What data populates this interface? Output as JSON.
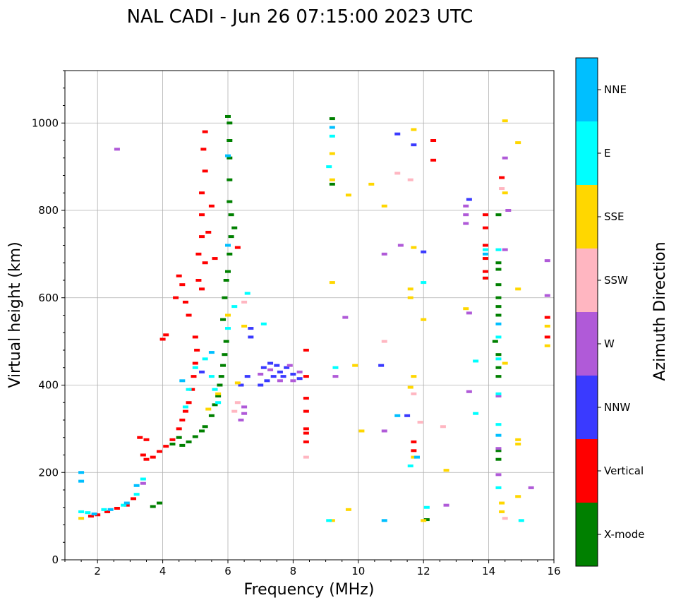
{
  "chart_data": {
    "type": "scatter",
    "title": "NAL CADI - Jun 26 07:15:00 2023 UTC",
    "xlabel": "Frequency (MHz)",
    "ylabel": "Virtual height (km)",
    "xlim": [
      1,
      16
    ],
    "ylim": [
      0,
      1120
    ],
    "xticks": [
      2,
      4,
      6,
      8,
      10,
      12,
      14,
      16
    ],
    "yticks": [
      0,
      200,
      400,
      600,
      800,
      1000
    ],
    "grid": true,
    "colorbar": {
      "title": "Azimuth Direction",
      "categories": [
        {
          "name": "X-mode",
          "color": "#008000"
        },
        {
          "name": "Vertical",
          "color": "#ff0000"
        },
        {
          "name": "NNW",
          "color": "#3a3aff"
        },
        {
          "name": "W",
          "color": "#b05ad8"
        },
        {
          "name": "SSW",
          "color": "#ffb6c1"
        },
        {
          "name": "SSE",
          "color": "#ffd700"
        },
        {
          "name": "E",
          "color": "#00ffff"
        },
        {
          "name": "NNE",
          "color": "#00bfff"
        }
      ]
    },
    "series": [
      {
        "name": "X-mode",
        "points": [
          [
            3.7,
            122
          ],
          [
            3.9,
            130
          ],
          [
            4.6,
            262
          ],
          [
            4.8,
            270
          ],
          [
            5.0,
            282
          ],
          [
            5.2,
            295
          ],
          [
            5.3,
            305
          ],
          [
            5.5,
            330
          ],
          [
            5.6,
            355
          ],
          [
            5.7,
            375
          ],
          [
            5.75,
            400
          ],
          [
            5.8,
            420
          ],
          [
            5.85,
            445
          ],
          [
            5.9,
            470
          ],
          [
            5.95,
            500
          ],
          [
            5.85,
            550
          ],
          [
            5.9,
            600
          ],
          [
            5.95,
            640
          ],
          [
            6.0,
            660
          ],
          [
            6.05,
            700
          ],
          [
            6.1,
            740
          ],
          [
            6.2,
            760
          ],
          [
            6.1,
            790
          ],
          [
            6.05,
            820
          ],
          [
            6.05,
            870
          ],
          [
            6.05,
            920
          ],
          [
            6.05,
            960
          ],
          [
            6.05,
            1000
          ],
          [
            6.0,
            1015
          ],
          [
            9.2,
            1010
          ],
          [
            9.2,
            860
          ],
          [
            12.1,
            92
          ],
          [
            14.3,
            230
          ],
          [
            14.3,
            250
          ],
          [
            14.3,
            420
          ],
          [
            14.3,
            440
          ],
          [
            14.3,
            470
          ],
          [
            14.3,
            560
          ],
          [
            14.3,
            580
          ],
          [
            14.3,
            600
          ],
          [
            14.3,
            630
          ],
          [
            14.3,
            665
          ],
          [
            14.3,
            680
          ],
          [
            14.3,
            790
          ],
          [
            13.9,
            645
          ],
          [
            14.2,
            500
          ],
          [
            4.3,
            265
          ],
          [
            4.5,
            280
          ]
        ]
      },
      {
        "name": "Vertical",
        "points": [
          [
            1.8,
            100
          ],
          [
            2.0,
            103
          ],
          [
            2.3,
            110
          ],
          [
            2.6,
            118
          ],
          [
            2.9,
            125
          ],
          [
            3.1,
            140
          ],
          [
            3.4,
            240
          ],
          [
            3.5,
            230
          ],
          [
            3.7,
            235
          ],
          [
            3.9,
            248
          ],
          [
            4.1,
            260
          ],
          [
            4.3,
            275
          ],
          [
            4.5,
            300
          ],
          [
            4.6,
            320
          ],
          [
            4.7,
            340
          ],
          [
            4.8,
            360
          ],
          [
            4.9,
            390
          ],
          [
            4.95,
            420
          ],
          [
            5.0,
            450
          ],
          [
            5.05,
            480
          ],
          [
            5.0,
            510
          ],
          [
            4.8,
            560
          ],
          [
            4.7,
            590
          ],
          [
            4.6,
            630
          ],
          [
            5.1,
            640
          ],
          [
            5.2,
            620
          ],
          [
            5.3,
            680
          ],
          [
            5.1,
            700
          ],
          [
            5.2,
            740
          ],
          [
            5.2,
            790
          ],
          [
            5.2,
            840
          ],
          [
            5.3,
            890
          ],
          [
            5.25,
            940
          ],
          [
            5.3,
            980
          ],
          [
            4.0,
            505
          ],
          [
            4.1,
            515
          ],
          [
            3.3,
            280
          ],
          [
            3.5,
            275
          ],
          [
            4.4,
            600
          ],
          [
            4.5,
            650
          ],
          [
            5.4,
            750
          ],
          [
            5.5,
            810
          ],
          [
            5.6,
            690
          ],
          [
            6.3,
            715
          ],
          [
            8.4,
            270
          ],
          [
            8.4,
            290
          ],
          [
            8.4,
            300
          ],
          [
            8.4,
            340
          ],
          [
            8.4,
            370
          ],
          [
            8.4,
            420
          ],
          [
            8.4,
            480
          ],
          [
            11.7,
            270
          ],
          [
            11.7,
            250
          ],
          [
            12.3,
            915
          ],
          [
            12.3,
            960
          ],
          [
            13.9,
            645
          ],
          [
            13.9,
            660
          ],
          [
            13.9,
            690
          ],
          [
            13.9,
            720
          ],
          [
            13.9,
            760
          ],
          [
            13.9,
            790
          ],
          [
            14.4,
            875
          ],
          [
            15.8,
            555
          ],
          [
            15.8,
            510
          ]
        ]
      },
      {
        "name": "NNW",
        "points": [
          [
            7.0,
            400
          ],
          [
            7.2,
            410
          ],
          [
            7.4,
            420
          ],
          [
            7.6,
            430
          ],
          [
            7.8,
            440
          ],
          [
            8.0,
            425
          ],
          [
            8.2,
            415
          ],
          [
            7.1,
            440
          ],
          [
            7.3,
            450
          ],
          [
            7.5,
            445
          ],
          [
            7.7,
            420
          ],
          [
            6.6,
            420
          ],
          [
            6.4,
            400
          ],
          [
            6.7,
            510
          ],
          [
            6.7,
            530
          ],
          [
            10.7,
            445
          ],
          [
            11.2,
            975
          ],
          [
            11.7,
            950
          ],
          [
            12.0,
            705
          ],
          [
            13.4,
            825
          ],
          [
            11.5,
            330
          ],
          [
            5.2,
            430
          ]
        ]
      },
      {
        "name": "W",
        "points": [
          [
            7.0,
            425
          ],
          [
            7.3,
            435
          ],
          [
            7.6,
            410
          ],
          [
            7.9,
            445
          ],
          [
            8.2,
            430
          ],
          [
            8.0,
            410
          ],
          [
            6.5,
            350
          ],
          [
            6.5,
            335
          ],
          [
            6.4,
            320
          ],
          [
            13.3,
            810
          ],
          [
            13.3,
            790
          ],
          [
            13.3,
            770
          ],
          [
            13.4,
            565
          ],
          [
            13.4,
            385
          ],
          [
            14.5,
            920
          ],
          [
            14.5,
            710
          ],
          [
            14.6,
            800
          ],
          [
            15.8,
            685
          ],
          [
            15.8,
            605
          ],
          [
            14.3,
            255
          ],
          [
            14.3,
            195
          ],
          [
            14.3,
            375
          ],
          [
            12.7,
            125
          ],
          [
            10.8,
            700
          ],
          [
            10.8,
            295
          ],
          [
            11.3,
            720
          ],
          [
            9.3,
            420
          ],
          [
            9.6,
            555
          ],
          [
            15.3,
            165
          ],
          [
            2.6,
            940
          ],
          [
            3.4,
            175
          ]
        ]
      },
      {
        "name": "SSW",
        "points": [
          [
            6.3,
            360
          ],
          [
            6.5,
            590
          ],
          [
            10.8,
            500
          ],
          [
            11.2,
            885
          ],
          [
            11.6,
            870
          ],
          [
            11.7,
            380
          ],
          [
            11.9,
            315
          ],
          [
            12.6,
            305
          ],
          [
            14.5,
            95
          ],
          [
            14.4,
            850
          ],
          [
            8.4,
            235
          ],
          [
            6.2,
            340
          ]
        ]
      },
      {
        "name": "SSE",
        "points": [
          [
            1.5,
            95
          ],
          [
            5.7,
            380
          ],
          [
            6.3,
            405
          ],
          [
            6.5,
            535
          ],
          [
            9.2,
            870
          ],
          [
            9.2,
            930
          ],
          [
            9.2,
            635
          ],
          [
            9.2,
            90
          ],
          [
            9.7,
            835
          ],
          [
            9.7,
            115
          ],
          [
            9.9,
            445
          ],
          [
            10.1,
            295
          ],
          [
            10.4,
            860
          ],
          [
            10.8,
            810
          ],
          [
            11.6,
            620
          ],
          [
            11.6,
            600
          ],
          [
            11.7,
            715
          ],
          [
            11.7,
            420
          ],
          [
            11.6,
            395
          ],
          [
            11.7,
            235
          ],
          [
            11.7,
            985
          ],
          [
            12.0,
            550
          ],
          [
            12.0,
            90
          ],
          [
            12.7,
            205
          ],
          [
            13.3,
            575
          ],
          [
            14.5,
            1005
          ],
          [
            14.5,
            840
          ],
          [
            14.5,
            450
          ],
          [
            14.4,
            110
          ],
          [
            14.4,
            130
          ],
          [
            14.9,
            955
          ],
          [
            14.9,
            620
          ],
          [
            14.9,
            275
          ],
          [
            14.9,
            265
          ],
          [
            14.9,
            145
          ],
          [
            15.8,
            535
          ],
          [
            15.8,
            490
          ],
          [
            6.0,
            560
          ],
          [
            5.4,
            345
          ]
        ]
      },
      {
        "name": "E",
        "points": [
          [
            1.5,
            110
          ],
          [
            1.7,
            108
          ],
          [
            2.2,
            115
          ],
          [
            2.8,
            125
          ],
          [
            3.2,
            150
          ],
          [
            4.7,
            350
          ],
          [
            4.8,
            390
          ],
          [
            5.0,
            440
          ],
          [
            5.3,
            460
          ],
          [
            5.5,
            420
          ],
          [
            5.6,
            390
          ],
          [
            5.7,
            360
          ],
          [
            6.0,
            530
          ],
          [
            6.2,
            580
          ],
          [
            6.6,
            610
          ],
          [
            7.1,
            540
          ],
          [
            9.1,
            900
          ],
          [
            9.2,
            970
          ],
          [
            9.3,
            440
          ],
          [
            9.1,
            90
          ],
          [
            11.6,
            215
          ],
          [
            12.1,
            120
          ],
          [
            12.0,
            635
          ],
          [
            14.3,
            710
          ],
          [
            14.3,
            510
          ],
          [
            14.3,
            460
          ],
          [
            14.3,
            380
          ],
          [
            14.3,
            310
          ],
          [
            14.3,
            165
          ],
          [
            13.9,
            710
          ],
          [
            15.0,
            90
          ],
          [
            13.6,
            455
          ],
          [
            13.6,
            335
          ],
          [
            3.4,
            185
          ]
        ]
      },
      {
        "name": "NNE",
        "points": [
          [
            1.5,
            200
          ],
          [
            1.5,
            180
          ],
          [
            1.9,
            105
          ],
          [
            2.4,
            115
          ],
          [
            2.9,
            130
          ],
          [
            3.2,
            170
          ],
          [
            5.5,
            475
          ],
          [
            6.0,
            720
          ],
          [
            6.0,
            925
          ],
          [
            9.2,
            990
          ],
          [
            10.8,
            90
          ],
          [
            11.2,
            330
          ],
          [
            11.8,
            235
          ],
          [
            14.3,
            540
          ],
          [
            14.3,
            285
          ],
          [
            13.9,
            700
          ],
          [
            4.6,
            410
          ]
        ]
      }
    ]
  }
}
